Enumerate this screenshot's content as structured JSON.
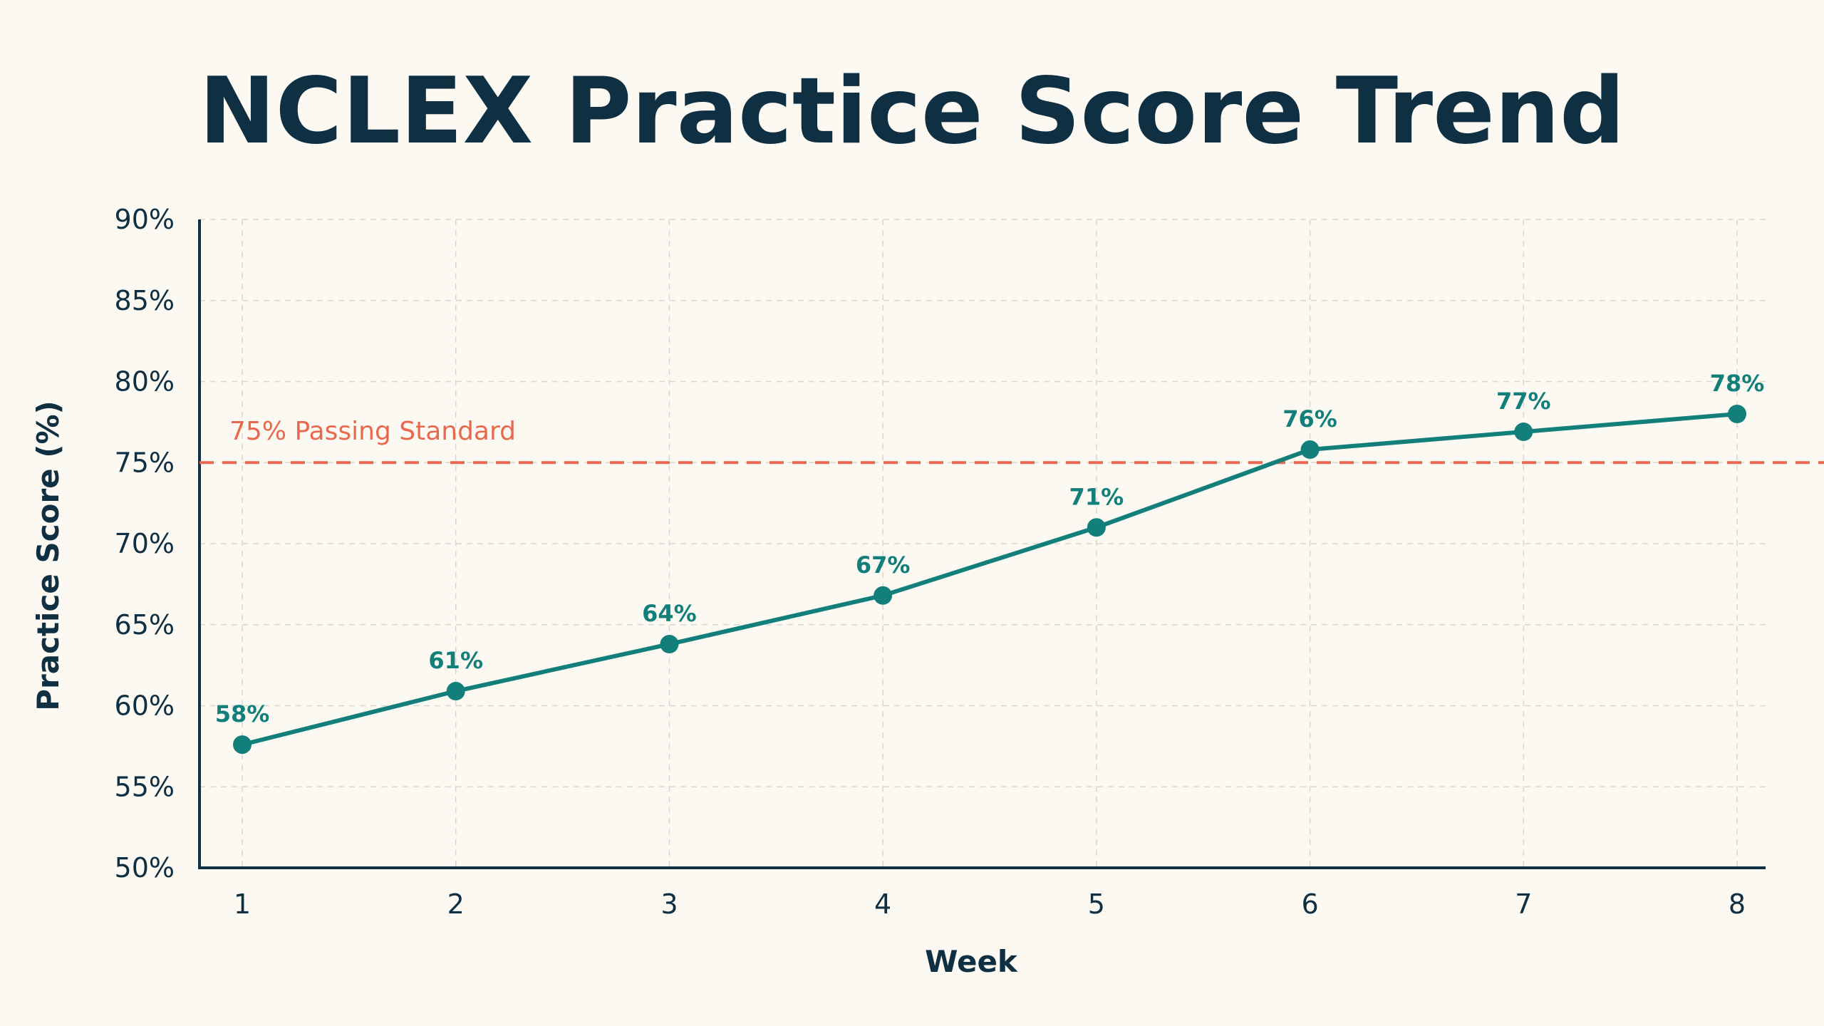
{
  "chart_data": {
    "type": "line",
    "title": "NCLEX Practice Score Trend",
    "xlabel": "Week",
    "ylabel": "Practice Score (%)",
    "x": [
      1,
      2,
      3,
      4,
      5,
      6,
      7,
      8
    ],
    "x_tick_labels": [
      "1",
      "2",
      "3",
      "4",
      "5",
      "6",
      "7",
      "8"
    ],
    "ylim": [
      50,
      90
    ],
    "y_ticks": [
      50,
      55,
      60,
      65,
      70,
      75,
      80,
      85,
      90
    ],
    "y_tick_labels": [
      "50%",
      "55%",
      "60%",
      "65%",
      "70%",
      "75%",
      "80%",
      "85%",
      "90%"
    ],
    "grid": true,
    "series": [
      {
        "values": [
          57.6,
          60.9,
          63.8,
          66.8,
          71.0,
          75.8,
          76.9,
          78.0
        ],
        "data_labels": [
          "58%",
          "61%",
          "64%",
          "67%",
          "71%",
          "76%",
          "77%",
          "78%"
        ],
        "color": "#127f7a"
      }
    ],
    "reference_line": {
      "value": 75,
      "label": "75% Passing Standard",
      "color": "#e8694d",
      "style": "dashed"
    }
  },
  "colors": {
    "background": "#fcf9f3",
    "text": "#0f2f42",
    "grid": "#d9d6cf",
    "axis": "#0f2f42"
  }
}
